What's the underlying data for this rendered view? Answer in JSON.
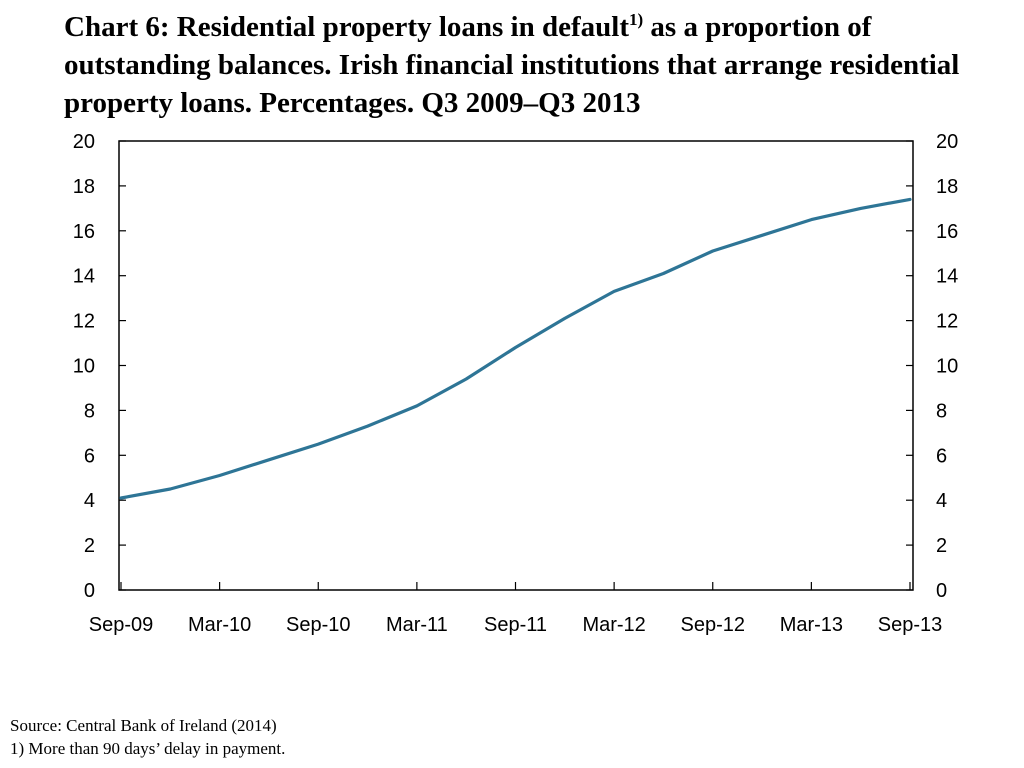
{
  "title": {
    "part1": "Chart 6: Residential property loans in default",
    "footnote_mark": "1)",
    "part2": " as a proportion of outstanding balances. Irish financial institutions that arrange residential property loans. Percentages. Q3 2009–Q3 2013"
  },
  "chart_data": {
    "type": "line",
    "x_labels": [
      "Sep-09",
      "Mar-10",
      "Sep-10",
      "Mar-11",
      "Sep-11",
      "Mar-12",
      "Sep-12",
      "Mar-13",
      "Sep-13"
    ],
    "x": [
      "Sep-09",
      "Dec-09",
      "Mar-10",
      "Jun-10",
      "Sep-10",
      "Dec-10",
      "Mar-11",
      "Jun-11",
      "Sep-11",
      "Dec-11",
      "Mar-12",
      "Jun-12",
      "Sep-12",
      "Dec-12",
      "Mar-13",
      "Jun-13",
      "Sep-13"
    ],
    "series": [
      {
        "values": [
          4.1,
          4.5,
          5.1,
          5.8,
          6.5,
          7.3,
          8.2,
          9.4,
          10.8,
          12.1,
          13.3,
          14.1,
          15.1,
          15.8,
          16.5,
          17.0,
          17.4
        ],
        "color": "#2e7596"
      }
    ],
    "ylim": [
      0,
      20
    ],
    "yticks": [
      "0",
      "2",
      "4",
      "6",
      "8",
      "10",
      "12",
      "14",
      "16",
      "18",
      "20"
    ],
    "secondary_y_axis": true,
    "grid": false,
    "legend": "none"
  },
  "notes": {
    "source": "Source: Central Bank of Ireland (2014)",
    "footnote": "1) More than 90 days’ delay in payment."
  }
}
